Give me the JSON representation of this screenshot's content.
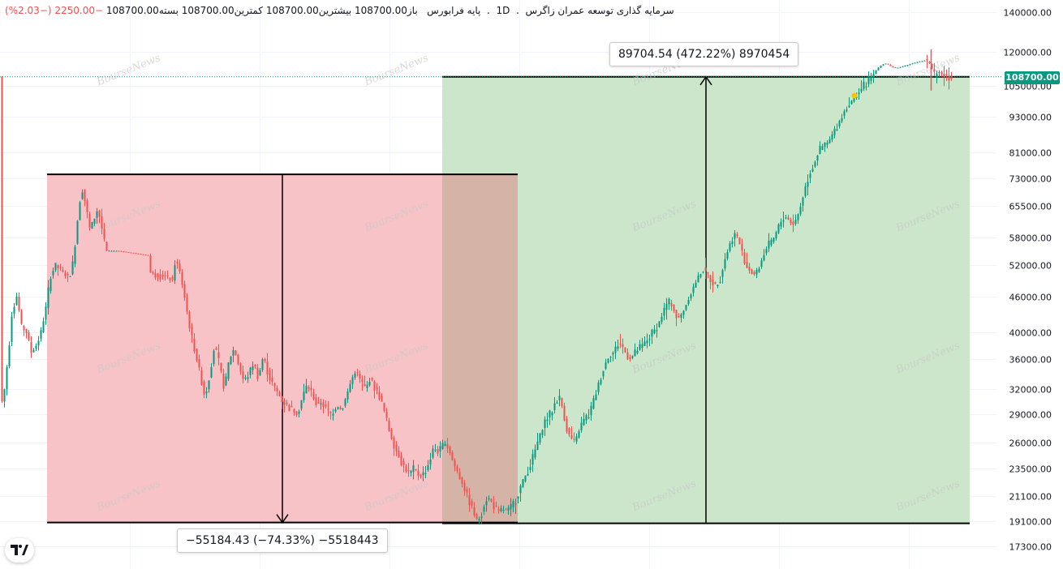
{
  "header": {
    "symbol": "سرمایه گذاری توسعه عمران زاگرس",
    "interval": "1D",
    "exchange": "پایه فرابورس",
    "open_label": "باز",
    "open": "108700.00",
    "high_label": "بیشترین",
    "high": "108700.00",
    "low_label": "کمترین",
    "low": "108700.00",
    "close_label": "بسته",
    "close": "108700.00",
    "change": "−2250.00",
    "change_pct": "(−2.03%)"
  },
  "watermark": "BourseNews",
  "colors": {
    "up": "#089981",
    "down": "#ef5350",
    "loss_zone": "#f8c3c7",
    "gain_zone": "#cce6cb",
    "overlap_zone": "#d6b3a7",
    "price_line": "#089981"
  },
  "measures": {
    "drop_label": "−55184.43 (−74.33%) −5518443",
    "rise_label": "89704.54 (472.22%) 8970454"
  },
  "price_tag": "108700.00",
  "chart_data": {
    "type": "candlestick",
    "y_scale": "log",
    "ylim": [
      16800,
      150000
    ],
    "y_ticks": [
      140000,
      120000,
      105000,
      93000,
      81000,
      73000,
      65500,
      58000,
      52000,
      46000,
      40000,
      36000,
      32000,
      29000,
      26000,
      23500,
      21100,
      19100,
      17300
    ],
    "y_tick_labels": [
      "140000.00",
      "120000.00",
      "105000.00",
      "93000.00",
      "81000.00",
      "73000.00",
      "65500.00",
      "58000.00",
      "52000.00",
      "46000.00",
      "40000.00",
      "36000.00",
      "32000.00",
      "29000.00",
      "26000.00",
      "23500.00",
      "21100.00",
      "19100.00",
      "17300.00"
    ],
    "last_price": 108700,
    "peak_price": 74200,
    "bottom_price": 19000,
    "drop_abs": 55184.43,
    "drop_pct": -74.33,
    "rise_abs": 89704.54,
    "rise_pct": 472.22,
    "path": [
      [
        0,
        30000
      ],
      [
        4,
        31000
      ],
      [
        10,
        37000
      ],
      [
        14,
        43000
      ],
      [
        20,
        46000
      ],
      [
        26,
        41000
      ],
      [
        32,
        40000
      ],
      [
        38,
        37000
      ],
      [
        44,
        38000
      ],
      [
        50,
        40000
      ],
      [
        56,
        44000
      ],
      [
        62,
        50000
      ],
      [
        68,
        52000
      ],
      [
        74,
        51000
      ],
      [
        80,
        50000
      ],
      [
        85,
        49500
      ],
      [
        90,
        53000
      ],
      [
        95,
        62000
      ],
      [
        100,
        71000
      ],
      [
        105,
        66000
      ],
      [
        110,
        60000
      ],
      [
        115,
        62000
      ],
      [
        120,
        65000
      ],
      [
        125,
        60000
      ],
      [
        130,
        55000
      ],
      [
        145,
        55000
      ],
      [
        165,
        54500
      ],
      [
        183,
        54000
      ],
      [
        185,
        50500
      ],
      [
        200,
        50000
      ],
      [
        212,
        49000
      ],
      [
        216,
        53500
      ],
      [
        222,
        50000
      ],
      [
        228,
        45000
      ],
      [
        234,
        40000
      ],
      [
        240,
        37000
      ],
      [
        246,
        34000
      ],
      [
        252,
        31000
      ],
      [
        258,
        34000
      ],
      [
        264,
        38000
      ],
      [
        270,
        35000
      ],
      [
        276,
        32000
      ],
      [
        282,
        36000
      ],
      [
        288,
        37500
      ],
      [
        294,
        35000
      ],
      [
        300,
        33000
      ],
      [
        306,
        34000
      ],
      [
        312,
        35500
      ],
      [
        318,
        33500
      ],
      [
        324,
        36500
      ],
      [
        330,
        34000
      ],
      [
        336,
        32500
      ],
      [
        342,
        31500
      ],
      [
        348,
        30500
      ],
      [
        354,
        30000
      ],
      [
        360,
        29500
      ],
      [
        366,
        29000
      ],
      [
        372,
        31000
      ],
      [
        378,
        32500
      ],
      [
        384,
        31500
      ],
      [
        390,
        30000
      ],
      [
        396,
        30500
      ],
      [
        402,
        29500
      ],
      [
        408,
        29000
      ],
      [
        414,
        30000
      ],
      [
        420,
        29500
      ],
      [
        426,
        31000
      ],
      [
        432,
        33000
      ],
      [
        438,
        34500
      ],
      [
        444,
        33000
      ],
      [
        450,
        32000
      ],
      [
        456,
        33500
      ],
      [
        462,
        32000
      ],
      [
        468,
        31000
      ],
      [
        474,
        29000
      ],
      [
        480,
        27000
      ],
      [
        486,
        25500
      ],
      [
        492,
        24500
      ],
      [
        498,
        23500
      ],
      [
        504,
        23000
      ],
      [
        510,
        23500
      ],
      [
        516,
        22800
      ],
      [
        522,
        23000
      ],
      [
        528,
        24000
      ],
      [
        534,
        25500
      ],
      [
        540,
        25000
      ],
      [
        546,
        26000
      ],
      [
        552,
        25500
      ],
      [
        558,
        24000
      ],
      [
        564,
        23000
      ],
      [
        570,
        22000
      ],
      [
        576,
        21000
      ],
      [
        582,
        20000
      ],
      [
        588,
        19000
      ],
      [
        594,
        20000
      ],
      [
        600,
        21000
      ],
      [
        606,
        20500
      ],
      [
        612,
        19800
      ],
      [
        618,
        20000
      ],
      [
        624,
        19900
      ],
      [
        630,
        20200
      ],
      [
        636,
        21000
      ],
      [
        642,
        22000
      ],
      [
        648,
        23000
      ],
      [
        654,
        24000
      ],
      [
        660,
        25500
      ],
      [
        666,
        27000
      ],
      [
        672,
        28500
      ],
      [
        678,
        29000
      ],
      [
        684,
        30500
      ],
      [
        690,
        31000
      ],
      [
        696,
        28000
      ],
      [
        702,
        26500
      ],
      [
        708,
        26000
      ],
      [
        714,
        27500
      ],
      [
        720,
        28500
      ],
      [
        726,
        29000
      ],
      [
        732,
        31000
      ],
      [
        738,
        33000
      ],
      [
        744,
        35000
      ],
      [
        750,
        36500
      ],
      [
        756,
        37000
      ],
      [
        762,
        38500
      ],
      [
        768,
        37500
      ],
      [
        774,
        36000
      ],
      [
        780,
        36500
      ],
      [
        786,
        37500
      ],
      [
        792,
        38000
      ],
      [
        798,
        39000
      ],
      [
        804,
        40000
      ],
      [
        810,
        41000
      ],
      [
        816,
        43000
      ],
      [
        822,
        45000
      ],
      [
        828,
        44500
      ],
      [
        834,
        42000
      ],
      [
        840,
        43000
      ],
      [
        846,
        45000
      ],
      [
        852,
        47000
      ],
      [
        858,
        49000
      ],
      [
        864,
        51000
      ],
      [
        870,
        50500
      ],
      [
        876,
        49000
      ],
      [
        882,
        48000
      ],
      [
        888,
        50000
      ],
      [
        894,
        54000
      ],
      [
        900,
        57000
      ],
      [
        906,
        59000
      ],
      [
        912,
        56000
      ],
      [
        918,
        52000
      ],
      [
        924,
        51000
      ],
      [
        930,
        50000
      ],
      [
        936,
        52000
      ],
      [
        942,
        55000
      ],
      [
        948,
        56500
      ],
      [
        954,
        58000
      ],
      [
        960,
        61000
      ],
      [
        966,
        63000
      ],
      [
        972,
        62000
      ],
      [
        978,
        61000
      ],
      [
        984,
        64000
      ],
      [
        990,
        69000
      ],
      [
        996,
        74000
      ],
      [
        1002,
        77000
      ],
      [
        1008,
        81000
      ],
      [
        1014,
        83000
      ],
      [
        1020,
        84000
      ],
      [
        1026,
        87000
      ],
      [
        1032,
        90000
      ],
      [
        1038,
        94000
      ],
      [
        1044,
        97000
      ],
      [
        1050,
        99000
      ],
      [
        1056,
        102000
      ],
      [
        1062,
        104000
      ],
      [
        1068,
        106000
      ],
      [
        1074,
        109000
      ],
      [
        1080,
        112000
      ],
      [
        1086,
        114000
      ],
      [
        1092,
        114500
      ],
      [
        1098,
        113000
      ],
      [
        1104,
        112500
      ],
      [
        1110,
        113000
      ],
      [
        1116,
        113500
      ],
      [
        1122,
        114500
      ],
      [
        1128,
        115000
      ],
      [
        1134,
        115500
      ],
      [
        1140,
        116000
      ],
      [
        1146,
        114000
      ],
      [
        1150,
        110000
      ],
      [
        1156,
        111000
      ],
      [
        1160,
        110000
      ],
      [
        1166,
        109000
      ],
      [
        1172,
        108700
      ]
    ]
  }
}
